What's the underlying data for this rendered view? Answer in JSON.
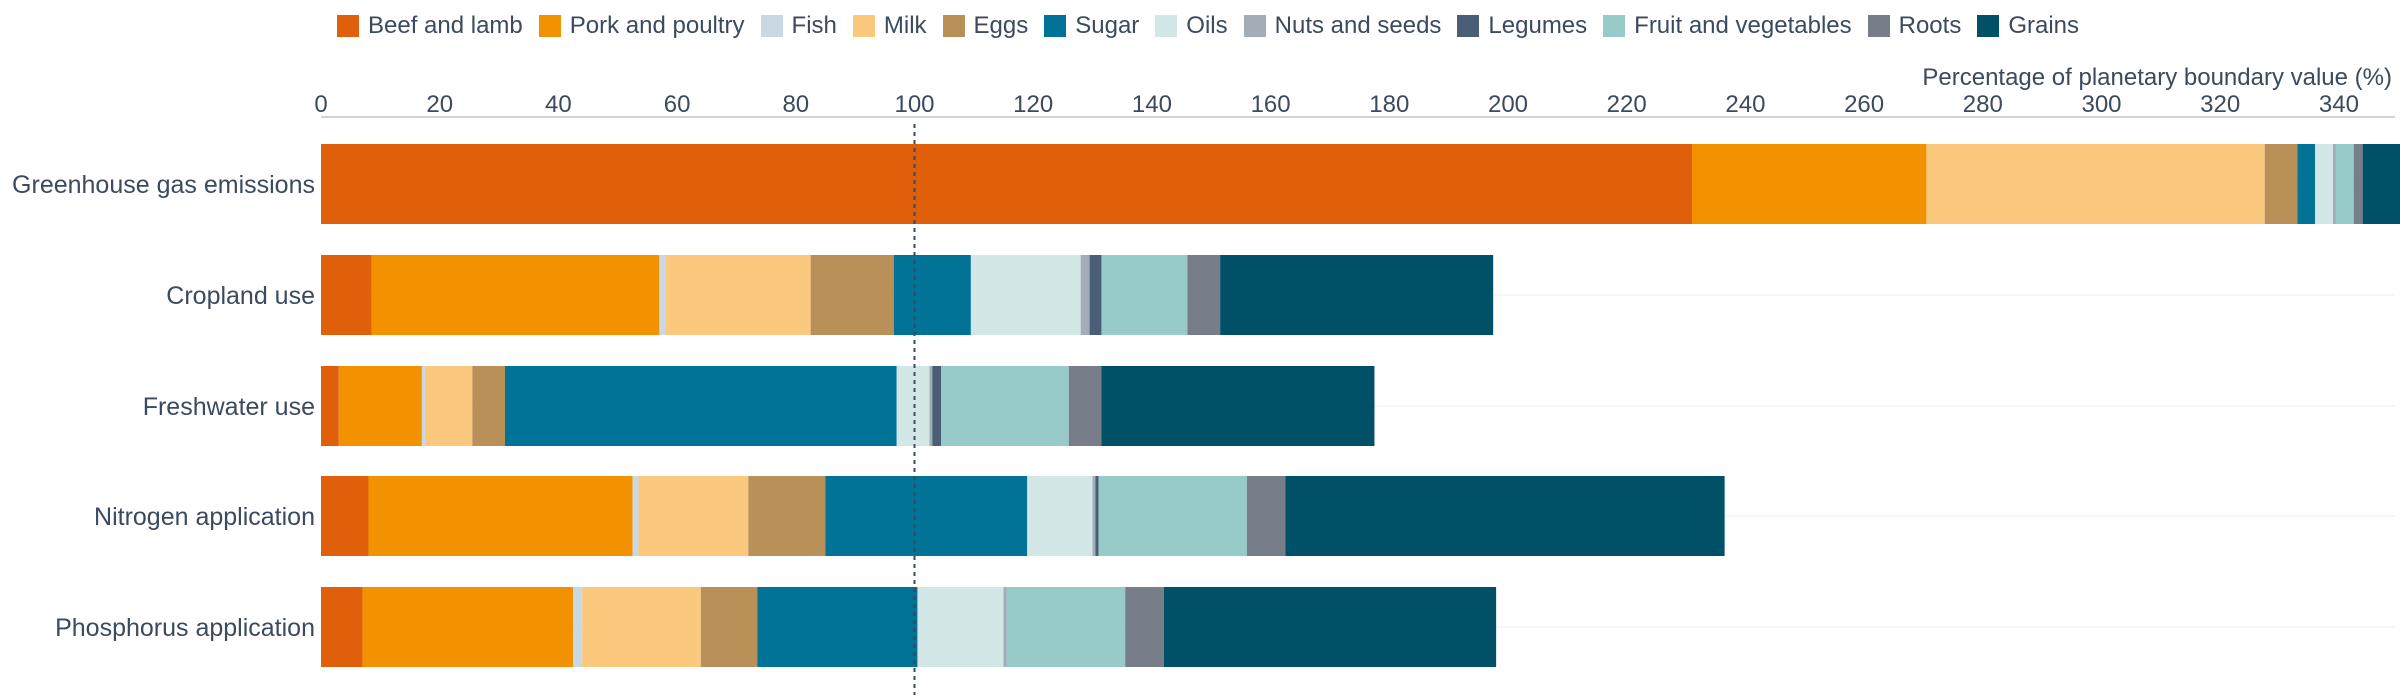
{
  "chart_data": {
    "type": "bar",
    "orientation": "horizontal",
    "stacked": true,
    "x_axis_title": "Percentage of planetary boundary value (%)",
    "x_ticks": [
      0,
      20,
      40,
      60,
      80,
      100,
      120,
      140,
      160,
      180,
      200,
      220,
      240,
      260,
      280,
      300,
      320,
      340
    ],
    "xlim": [
      0,
      350
    ],
    "reference_line": 100,
    "categories": [
      "Greenhouse gas emissions",
      "Cropland use",
      "Freshwater use",
      "Nitrogen application",
      "Phosphorus application"
    ],
    "series": [
      {
        "name": "Beef and lamb",
        "color": "#df5f0a",
        "values": [
          231,
          8.5,
          3,
          8,
          7
        ]
      },
      {
        "name": "Pork and poultry",
        "color": "#f29200",
        "values": [
          39.5,
          48.5,
          14,
          44.5,
          35.5
        ]
      },
      {
        "name": "Fish",
        "color": "#c9d8e5",
        "values": [
          0,
          1,
          0.5,
          1,
          1.5
        ]
      },
      {
        "name": "Milk",
        "color": "#fbc97e",
        "values": [
          57,
          24.5,
          8,
          18.5,
          20
        ]
      },
      {
        "name": "Eggs",
        "color": "#b89058",
        "values": [
          5.5,
          14,
          5.5,
          13,
          9.5
        ]
      },
      {
        "name": "Sugar",
        "color": "#007396",
        "values": [
          3,
          13,
          66,
          34,
          27
        ]
      },
      {
        "name": "Oils",
        "color": "#d3e8e6",
        "values": [
          3,
          18.5,
          5.5,
          11,
          14.5
        ]
      },
      {
        "name": "Nuts and seeds",
        "color": "#a3adb8",
        "values": [
          0.5,
          1.5,
          0.5,
          0.5,
          0.5
        ]
      },
      {
        "name": "Legumes",
        "color": "#4a5e75",
        "values": [
          0,
          2,
          1.5,
          0.5,
          0
        ]
      },
      {
        "name": "Fruit and vegetables",
        "color": "#96cbc9",
        "values": [
          3,
          14.5,
          21.5,
          25,
          20
        ]
      },
      {
        "name": "Roots",
        "color": "#777e89",
        "values": [
          1.5,
          5.5,
          5.5,
          6.5,
          6.5
        ]
      },
      {
        "name": "Grains",
        "color": "#005168",
        "values": [
          6.5,
          46,
          46,
          74,
          56
        ]
      }
    ]
  }
}
